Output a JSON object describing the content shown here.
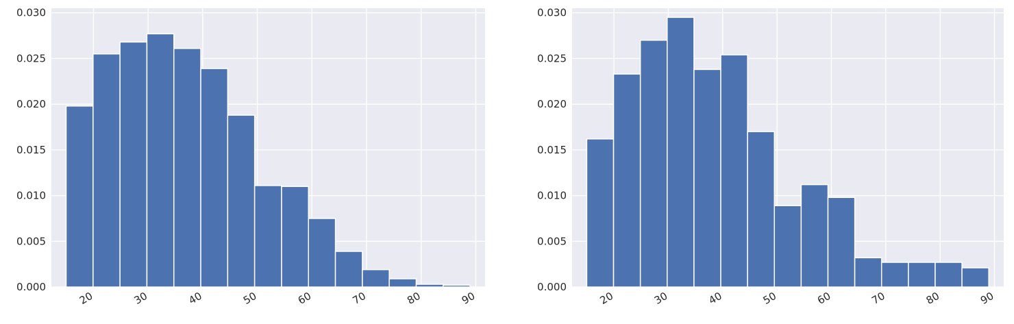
{
  "chart_data": [
    {
      "type": "bar",
      "histogram": true,
      "title": "",
      "xlabel": "",
      "ylabel": "",
      "xlim": [
        12.3,
        91.7
      ],
      "ylim": [
        0,
        0.0305
      ],
      "bin_start": 15,
      "bin_width": 4.93,
      "values": [
        0.0198,
        0.0255,
        0.0268,
        0.0277,
        0.0261,
        0.0239,
        0.0188,
        0.0111,
        0.011,
        0.0075,
        0.0039,
        0.0019,
        0.0009,
        0.0003,
        0.0002
      ],
      "xticks": [
        20,
        30,
        40,
        50,
        60,
        70,
        80,
        90
      ],
      "yticks": [
        0.0,
        0.005,
        0.01,
        0.015,
        0.02,
        0.025,
        0.03
      ],
      "ytick_labels": [
        "0.000",
        "0.005",
        "0.010",
        "0.015",
        "0.020",
        "0.025",
        "0.030"
      ],
      "grid": true,
      "bar_color": "#4c72b0",
      "background": "#eaeaf2"
    },
    {
      "type": "bar",
      "histogram": true,
      "title": "",
      "xlabel": "",
      "ylabel": "",
      "xlim": [
        12.3,
        91.7
      ],
      "ylim": [
        0,
        0.0305
      ],
      "bin_start": 15,
      "bin_width": 4.93,
      "values": [
        0.0162,
        0.0233,
        0.027,
        0.0295,
        0.0238,
        0.0254,
        0.017,
        0.0089,
        0.0112,
        0.0098,
        0.0032,
        0.0027,
        0.0027,
        0.0027,
        0.0021
      ],
      "xticks": [
        20,
        30,
        40,
        50,
        60,
        70,
        80,
        90
      ],
      "yticks": [
        0.0,
        0.005,
        0.01,
        0.015,
        0.02,
        0.025,
        0.03
      ],
      "ytick_labels": [
        "0.000",
        "0.005",
        "0.010",
        "0.015",
        "0.020",
        "0.025",
        "0.030"
      ],
      "grid": true,
      "bar_color": "#4c72b0",
      "background": "#eaeaf2"
    }
  ]
}
